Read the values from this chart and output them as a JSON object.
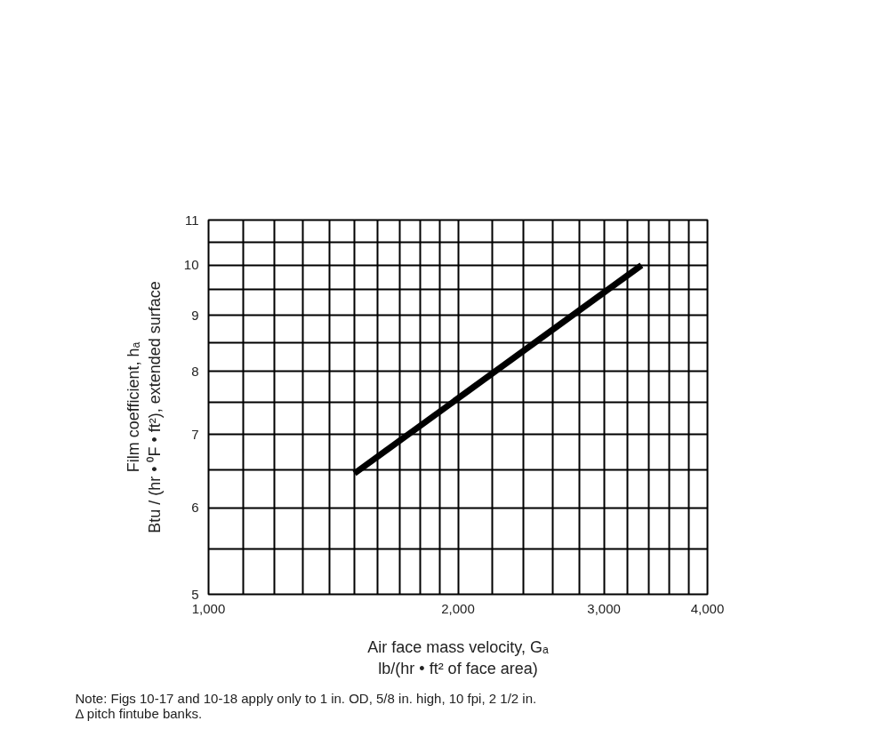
{
  "chart_data": {
    "type": "line",
    "xlabel": "Air face mass velocity, Gₐ\nlb/(hr • ft² of face area)",
    "ylabel": "Film coefficient, hₐ\nBtu / (hr • ⁰F • ft²), extended surface",
    "annotations": [
      "Note: Figs 10-17 and 10-18 apply only to 1 in. OD, 5/8 in. high, 10 fpi, 2 1/2 in.\n      Δ pitch fintube banks."
    ],
    "x": [
      1500,
      3330
    ],
    "series": [
      {
        "color": "#000000",
        "values": [
          6.45,
          10.0
        ]
      }
    ],
    "log": "xy",
    "grid": true,
    "marker": "none",
    "line_style": "solid",
    "xlim": [
      1000,
      4000
    ],
    "ylim": [
      5,
      11
    ],
    "xticks": [
      {
        "value": 1000,
        "label": "1,000"
      },
      {
        "value": 1100,
        "label": null
      },
      {
        "value": 1200,
        "label": null
      },
      {
        "value": 1300,
        "label": null
      },
      {
        "value": 1400,
        "label": null
      },
      {
        "value": 1500,
        "label": null
      },
      {
        "value": 1600,
        "label": null
      },
      {
        "value": 1700,
        "label": null
      },
      {
        "value": 1800,
        "label": null
      },
      {
        "value": 1900,
        "label": null
      },
      {
        "value": 2000,
        "label": "2,000"
      },
      {
        "value": 2200,
        "label": null
      },
      {
        "value": 2400,
        "label": null
      },
      {
        "value": 2600,
        "label": null
      },
      {
        "value": 2800,
        "label": null
      },
      {
        "value": 3000,
        "label": "3,000"
      },
      {
        "value": 3200,
        "label": null
      },
      {
        "value": 3400,
        "label": null
      },
      {
        "value": 3600,
        "label": null
      },
      {
        "value": 3800,
        "label": null
      },
      {
        "value": 4000,
        "label": "4,000"
      }
    ],
    "yticks": [
      5,
      {
        "value": 5.5,
        "label": null
      },
      6,
      {
        "value": 6.5,
        "label": null
      },
      7,
      {
        "value": 7.5,
        "label": null
      },
      8,
      {
        "value": 8.5,
        "label": null
      },
      9,
      {
        "value": 9.5,
        "label": null
      },
      10,
      {
        "value": 10.5,
        "label": null
      },
      11
    ]
  }
}
